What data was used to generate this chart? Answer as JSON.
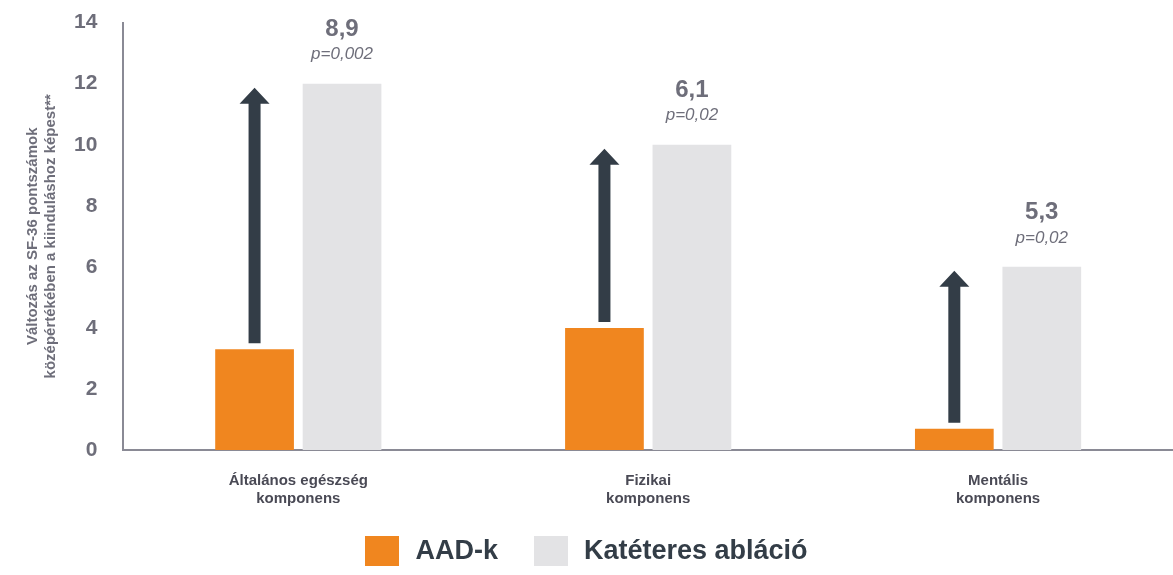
{
  "chart_data": {
    "type": "bar",
    "ylabel": "Változás az SF-36 pontszámok középértékében a kiinduláshoz képest**",
    "categories": [
      "Általános egészség komponens",
      "Fizikai komponens",
      "Mentális komponens"
    ],
    "series": [
      {
        "name": "AAD-k",
        "color": "#f0861f",
        "values": [
          3.3,
          4.0,
          0.7
        ]
      },
      {
        "name": "Katéteres abláció",
        "color": "#e3e3e5",
        "values": [
          12.0,
          10.0,
          6.0
        ]
      }
    ],
    "ylim": [
      0,
      14
    ],
    "yticks": [
      0,
      2,
      4,
      6,
      8,
      10,
      12,
      14
    ],
    "grid": false,
    "legend": "bottom",
    "annotations": [
      "8,9",
      "p=0,002",
      "6,1",
      "p=0,02",
      "5,3",
      "p=0,02"
    ]
  }
}
